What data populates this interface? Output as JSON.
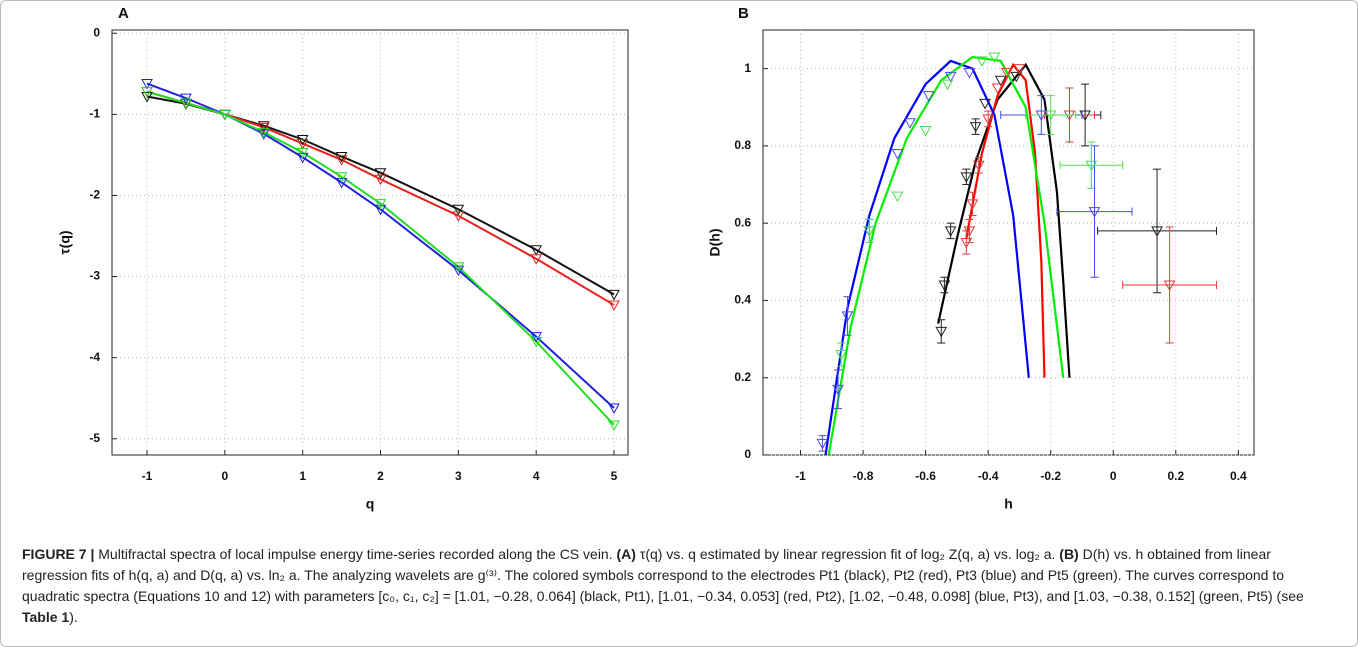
{
  "chart_data": [
    {
      "type": "line",
      "panel_label": "A",
      "xlabel": "q",
      "ylabel": "τ(q)",
      "x": [
        -1,
        -0.5,
        0,
        0.5,
        1,
        1.5,
        2,
        3,
        4,
        5
      ],
      "series": [
        {
          "color": "#111111",
          "values": [
            -0.78,
            -0.87,
            -1,
            -1.14,
            -1.31,
            -1.52,
            -1.72,
            -2.17,
            -2.67,
            -3.22
          ]
        },
        {
          "color": "#e8201e",
          "values": [
            -0.72,
            -0.86,
            -1,
            -1.16,
            -1.36,
            -1.56,
            -1.8,
            -2.25,
            -2.78,
            -3.35
          ]
        },
        {
          "color": "#2020e0",
          "values": [
            -0.62,
            -0.8,
            -1,
            -1.24,
            -1.53,
            -1.84,
            -2.17,
            -2.92,
            -3.74,
            -4.62
          ]
        },
        {
          "color": "#22dd22",
          "values": [
            -0.72,
            -0.86,
            -1,
            -1.22,
            -1.47,
            -1.77,
            -2.1,
            -2.88,
            -3.8,
            -4.83
          ]
        }
      ],
      "xlim": [
        -1.45,
        5.18
      ],
      "ylim": [
        -5.2,
        0.04
      ],
      "xticks": [
        -1,
        0,
        1,
        2,
        3,
        4,
        5
      ],
      "yticks": [
        -5,
        -4,
        -3,
        -2,
        -1,
        0
      ],
      "grid": true
    },
    {
      "type": "errorbar",
      "panel_label": "B",
      "xlabel": "h",
      "ylabel": "D(h)",
      "series": [
        {
          "color": "#222222",
          "x": [
            -0.55,
            -0.54,
            -0.52,
            -0.47,
            -0.44,
            -0.41,
            -0.36,
            -0.31,
            -0.09,
            0.14
          ],
          "values": [
            0.32,
            0.44,
            0.58,
            0.72,
            0.85,
            0.91,
            0.97,
            0.98,
            0.88,
            0.58
          ],
          "xerr": [
            null,
            null,
            null,
            null,
            null,
            null,
            null,
            null,
            0.05,
            0.19
          ],
          "yerr": [
            0.03,
            0.02,
            0.02,
            0.02,
            0.02,
            null,
            null,
            null,
            0.08,
            0.16
          ]
        },
        {
          "color": "#e83a3a",
          "x": [
            -0.47,
            -0.46,
            -0.45,
            -0.43,
            -0.4,
            -0.37,
            -0.34,
            -0.3,
            -0.14,
            0.18
          ],
          "values": [
            0.55,
            0.58,
            0.65,
            0.75,
            0.87,
            0.95,
            0.99,
            1.0,
            0.88,
            0.44
          ],
          "xerr": [
            null,
            null,
            null,
            null,
            null,
            null,
            null,
            null,
            0.08,
            0.15
          ],
          "yerr": [
            0.03,
            0.03,
            0.03,
            0.02,
            0.02,
            null,
            null,
            null,
            0.07,
            0.15
          ]
        },
        {
          "color": "#4a4ae8",
          "x": [
            -0.93,
            -0.88,
            -0.85,
            -0.78,
            -0.69,
            -0.65,
            -0.59,
            -0.52,
            -0.46,
            -0.23,
            -0.06
          ],
          "values": [
            0.03,
            0.17,
            0.36,
            0.58,
            0.78,
            0.86,
            0.93,
            0.98,
            0.99,
            0.88,
            0.63
          ],
          "xerr": [
            null,
            null,
            null,
            null,
            null,
            null,
            null,
            null,
            null,
            0.13,
            0.12
          ],
          "yerr": [
            0.02,
            0.05,
            0.05,
            0.03,
            null,
            null,
            null,
            null,
            null,
            0.05,
            0.17
          ]
        },
        {
          "color": "#4ee04e",
          "x": [
            -0.87,
            -0.78,
            -0.69,
            -0.6,
            -0.53,
            -0.42,
            -0.38,
            -0.2,
            -0.07
          ],
          "values": [
            0.26,
            0.58,
            0.67,
            0.84,
            0.96,
            1.02,
            1.03,
            0.88,
            0.75
          ],
          "xerr": [
            null,
            null,
            null,
            null,
            null,
            null,
            null,
            0.08,
            0.1
          ],
          "yerr": [
            0.03,
            0.03,
            null,
            null,
            null,
            null,
            null,
            0.05,
            0.06
          ]
        }
      ],
      "curves": [
        {
          "color": "#000000",
          "x": [
            -0.56,
            -0.5,
            -0.44,
            -0.37,
            -0.28,
            -0.22,
            -0.18,
            -0.16,
            -0.14
          ],
          "values": [
            0.34,
            0.56,
            0.76,
            0.92,
            1.01,
            0.92,
            0.68,
            0.45,
            0.2
          ]
        },
        {
          "color": "#ff0000",
          "x": [
            -0.47,
            -0.42,
            -0.37,
            -0.32,
            -0.28,
            -0.25,
            -0.23,
            -0.22
          ],
          "values": [
            0.56,
            0.78,
            0.93,
            1.01,
            0.97,
            0.78,
            0.5,
            0.2
          ]
        },
        {
          "color": "#0000ff",
          "x": [
            -0.92,
            -0.85,
            -0.78,
            -0.7,
            -0.6,
            -0.52,
            -0.45,
            -0.38,
            -0.32,
            -0.27
          ],
          "values": [
            0,
            0.38,
            0.62,
            0.82,
            0.96,
            1.02,
            1.0,
            0.88,
            0.62,
            0.2
          ]
        },
        {
          "color": "#00ee00",
          "x": [
            -0.91,
            -0.84,
            -0.76,
            -0.66,
            -0.55,
            -0.45,
            -0.36,
            -0.28,
            -0.22,
            -0.16
          ],
          "values": [
            0,
            0.33,
            0.6,
            0.82,
            0.97,
            1.03,
            1.02,
            0.9,
            0.6,
            0.2
          ]
        }
      ],
      "xlim": [
        -1.12,
        0.45
      ],
      "ylim": [
        0,
        1.1
      ],
      "xticks": [
        -1,
        -0.8,
        -0.6,
        -0.4,
        -0.2,
        0,
        0.2,
        0.4
      ],
      "yticks": [
        0,
        0.2,
        0.4,
        0.6,
        0.8,
        1
      ],
      "grid": true
    }
  ],
  "caption": [
    "FIGURE 7 |",
    " Multifractal spectra of local impulse energy time-series recorded along the CS vein. ",
    "(A)",
    " τ(q) vs. q estimated by linear regression fit of log₂ Z(q, a) vs. log₂ a. ",
    "(B)",
    " D(h) vs. h obtained from linear regression fits of h(q, a) and D(q, a) vs. ln₂ a. The analyzing wavelets are g⁽³⁾. The colored symbols correspond to the electrodes Pt1 (black), Pt2 (red), Pt3 (blue) and Pt5 (green). The curves correspond to quadratic spectra (Equations 10 and 12) with parameters [c₀, c₁, c₂] = [1.01, −0.28, 0.064] (black, Pt1), [1.01, −0.34, 0.053] (red, Pt2), [1.02, −0.48, 0.098] (blue, Pt3), and [1.03, −0.38, 0.152] (green, Pt5) (see ",
    "Table 1",
    ")."
  ]
}
